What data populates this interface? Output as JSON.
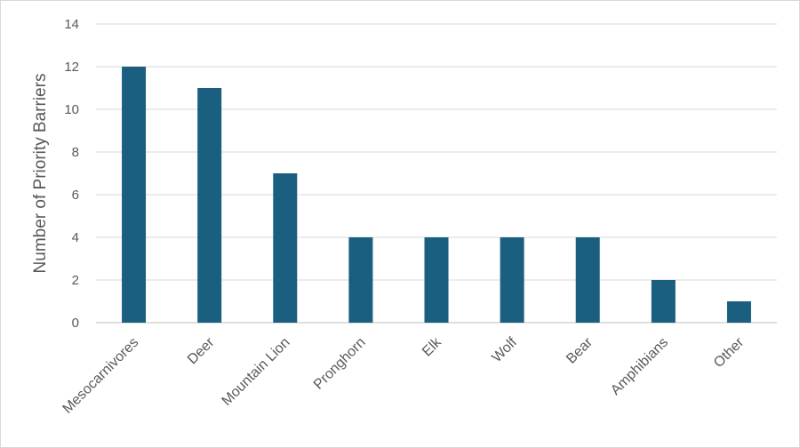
{
  "chart_data": {
    "type": "bar",
    "ylabel": "Number of Priority Barriers",
    "categories": [
      "Mesocarnivores",
      "Deer",
      "Mountain Lion",
      "Pronghorn",
      "Elk",
      "Wolf",
      "Bear",
      "Amphibians",
      "Other"
    ],
    "values": [
      12,
      11,
      7,
      4,
      4,
      4,
      4,
      2,
      1
    ],
    "ylim": [
      0,
      14
    ],
    "yticks": [
      0,
      2,
      4,
      6,
      8,
      10,
      12,
      14
    ],
    "grid": true,
    "legend": "none",
    "bar_color": "#1a5e80"
  }
}
